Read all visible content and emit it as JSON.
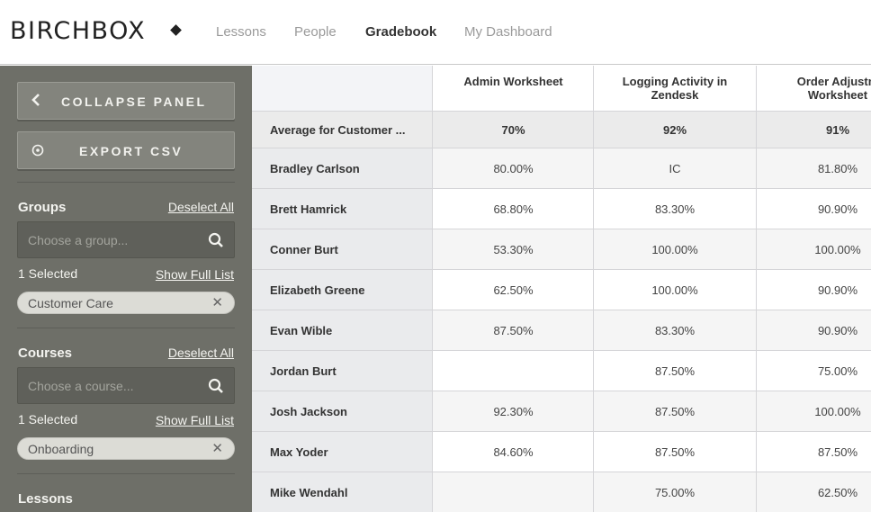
{
  "brand": {
    "logo_text": "BIRCHBOX"
  },
  "nav": {
    "items": [
      {
        "label": "Lessons"
      },
      {
        "label": "People"
      },
      {
        "label": "Gradebook"
      },
      {
        "label": "My Dashboard"
      }
    ],
    "active": "Gradebook"
  },
  "sidebar": {
    "collapse_label": "COLLAPSE PANEL",
    "export_label": "EXPORT CSV",
    "groups": {
      "title": "Groups",
      "deselect_label": "Deselect All",
      "placeholder": "Choose a group...",
      "selected_count": "1 Selected",
      "show_full_label": "Show Full List",
      "selected_item": "Customer Care"
    },
    "courses": {
      "title": "Courses",
      "deselect_label": "Deselect All",
      "placeholder": "Choose a course...",
      "selected_count": "1 Selected",
      "show_full_label": "Show Full List",
      "selected_item": "Onboarding"
    },
    "lessons": {
      "title": "Lessons"
    }
  },
  "gradebook": {
    "columns": [
      "Admin Worksheet",
      "Logging Activity in\nZendesk",
      "Order Adjustm\nWorksheet"
    ],
    "average_row": {
      "label": "Average for Customer ...",
      "values": [
        "70%",
        "92%",
        "91%"
      ]
    },
    "rows": [
      {
        "name": "Bradley Carlson",
        "values": [
          "80.00%",
          "IC",
          "81.80%"
        ]
      },
      {
        "name": "Brett Hamrick",
        "values": [
          "68.80%",
          "83.30%",
          "90.90%"
        ]
      },
      {
        "name": "Conner Burt",
        "values": [
          "53.30%",
          "100.00%",
          "100.00%"
        ]
      },
      {
        "name": "Elizabeth Greene",
        "values": [
          "62.50%",
          "100.00%",
          "90.90%"
        ]
      },
      {
        "name": "Evan Wible",
        "values": [
          "87.50%",
          "83.30%",
          "90.90%"
        ]
      },
      {
        "name": "Jordan Burt",
        "values": [
          "",
          "87.50%",
          "75.00%"
        ]
      },
      {
        "name": "Josh Jackson",
        "values": [
          "92.30%",
          "87.50%",
          "100.00%"
        ]
      },
      {
        "name": "Max Yoder",
        "values": [
          "84.60%",
          "87.50%",
          "87.50%"
        ]
      },
      {
        "name": "Mike Wendahl",
        "values": [
          "",
          "75.00%",
          "62.50%"
        ]
      }
    ]
  },
  "colors": {
    "sidebar_bg": "#6e6f68",
    "accent_text": "#f4f4f0"
  },
  "icons": [
    "chevron-left-icon",
    "export-icon",
    "search-icon",
    "close-icon"
  ]
}
